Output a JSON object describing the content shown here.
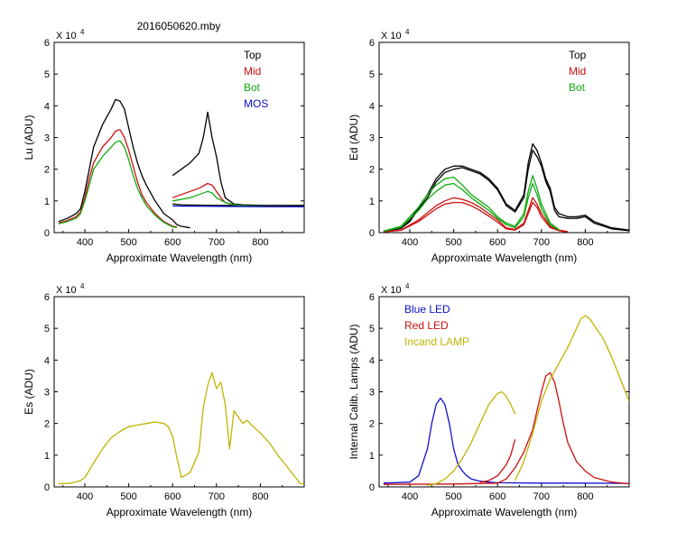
{
  "figure_title": "2016050620.mby",
  "colors": {
    "black": "#000000",
    "red": "#cc1010",
    "green": "#10aa10",
    "blue": "#1010cc",
    "yellow": "#c0b400"
  },
  "chart_data": [
    {
      "type": "line",
      "panel": "top-left",
      "exponent_label": "X 10",
      "exponent_power": "4",
      "xlabel": "Approximate Wavelength (nm)",
      "ylabel": "Lu (ADU)",
      "xlim": [
        330,
        900
      ],
      "ylim": [
        0,
        60000
      ],
      "xticks": [
        "400",
        "500",
        "600",
        "700",
        "800"
      ],
      "yticks": [
        "0",
        "1",
        "2",
        "3",
        "4",
        "5",
        "6"
      ],
      "legend": [
        {
          "label": "Top",
          "color": "#000000"
        },
        {
          "label": "Mid",
          "color": "#cc1010"
        },
        {
          "label": "Bot",
          "color": "#10aa10"
        },
        {
          "label": "MOS",
          "color": "#1010cc"
        }
      ],
      "series": [
        {
          "name": "Top",
          "color": "#000000",
          "x": [
            340,
            360,
            380,
            390,
            400,
            410,
            420,
            440,
            460,
            470,
            480,
            490,
            500,
            510,
            520,
            530,
            540,
            560,
            580,
            600,
            610,
            620,
            640
          ],
          "y": [
            3500,
            4500,
            6000,
            7500,
            13000,
            20000,
            27000,
            34000,
            39000,
            42000,
            41500,
            39000,
            33000,
            27000,
            22000,
            18000,
            15000,
            10000,
            6000,
            4000,
            2500,
            2000,
            1500
          ]
        },
        {
          "name": "Top (red)",
          "color": "#000000",
          "x": [
            600,
            620,
            640,
            660,
            670,
            680,
            690,
            700,
            710,
            720,
            740,
            760,
            800,
            900
          ],
          "y": [
            18000,
            20000,
            22000,
            25000,
            30000,
            38000,
            30000,
            24000,
            16000,
            11000,
            9000,
            8800,
            8600,
            8600
          ]
        },
        {
          "name": "Top (flat)",
          "color": "#000000",
          "x": [
            600,
            620,
            640,
            700,
            760,
            800,
            900
          ],
          "y": [
            9000,
            8800,
            8700,
            8600,
            8600,
            8500,
            8500
          ]
        },
        {
          "name": "Mid",
          "color": "#cc1010",
          "x": [
            340,
            360,
            380,
            390,
            400,
            410,
            420,
            440,
            460,
            470,
            480,
            490,
            500,
            510,
            520,
            530,
            540,
            560,
            580,
            600,
            610
          ],
          "y": [
            3000,
            3800,
            5000,
            6500,
            11000,
            17000,
            22000,
            27000,
            30000,
            32000,
            32500,
            30000,
            26000,
            21000,
            16000,
            12000,
            9500,
            6000,
            3500,
            2000,
            1800
          ]
        },
        {
          "name": "Mid (red)",
          "color": "#cc1010",
          "x": [
            600,
            620,
            640,
            660,
            680,
            690,
            700,
            710,
            720,
            740,
            760,
            800,
            900
          ],
          "y": [
            11000,
            12000,
            13000,
            14000,
            15500,
            15000,
            13000,
            11000,
            9500,
            8800,
            8500,
            8300,
            8200
          ]
        },
        {
          "name": "Bot",
          "color": "#10aa10",
          "x": [
            340,
            360,
            380,
            390,
            400,
            410,
            420,
            440,
            460,
            470,
            480,
            490,
            500,
            510,
            520,
            530,
            540,
            560,
            580,
            600,
            610
          ],
          "y": [
            2800,
            3500,
            4500,
            6000,
            10000,
            15000,
            20000,
            24000,
            27000,
            28500,
            29000,
            27000,
            23000,
            18000,
            14000,
            11000,
            8500,
            5500,
            3200,
            1800,
            1600
          ]
        },
        {
          "name": "Bot (red)",
          "color": "#10aa10",
          "x": [
            600,
            620,
            640,
            660,
            680,
            690,
            700,
            720,
            740,
            760,
            800,
            900
          ],
          "y": [
            10000,
            10500,
            11000,
            12000,
            13000,
            12500,
            11000,
            9500,
            8800,
            8500,
            8300,
            8200
          ]
        },
        {
          "name": "MOS",
          "color": "#1010cc",
          "x": [
            600,
            700,
            800,
            900
          ],
          "y": [
            8400,
            8300,
            8200,
            8200
          ]
        }
      ]
    },
    {
      "type": "line",
      "panel": "top-right",
      "exponent_label": "X 10",
      "exponent_power": "4",
      "xlabel": "Approximate Wavelength (nm)",
      "ylabel": "Ed  (ADU)",
      "xlim": [
        330,
        900
      ],
      "ylim": [
        0,
        60000
      ],
      "xticks": [
        "400",
        "500",
        "600",
        "700",
        "800"
      ],
      "yticks": [
        "0",
        "1",
        "2",
        "3",
        "4",
        "5",
        "6"
      ],
      "legend": [
        {
          "label": "Top",
          "color": "#000000"
        },
        {
          "label": "Mid",
          "color": "#cc1010"
        },
        {
          "label": "Bot",
          "color": "#10aa10"
        }
      ],
      "series": [
        {
          "name": "Top",
          "color": "#000000",
          "x": [
            340,
            380,
            400,
            420,
            440,
            460,
            480,
            500,
            520,
            540,
            560,
            580,
            600,
            620,
            640,
            660,
            670,
            680,
            690,
            700,
            710,
            720,
            730,
            740,
            760,
            780,
            800,
            820,
            860,
            900
          ],
          "y": [
            500,
            1500,
            4000,
            8000,
            12000,
            17000,
            20000,
            21000,
            21000,
            20000,
            19000,
            17000,
            14000,
            9000,
            7000,
            12000,
            22000,
            28000,
            26000,
            22000,
            17000,
            14000,
            8000,
            6000,
            5000,
            5000,
            5500,
            3500,
            1500,
            800
          ]
        },
        {
          "name": "Top 2",
          "color": "#000000",
          "x": [
            340,
            380,
            400,
            420,
            440,
            460,
            480,
            500,
            520,
            540,
            560,
            580,
            600,
            620,
            640,
            660,
            670,
            680,
            690,
            700,
            710,
            720,
            730,
            740,
            760,
            780,
            800,
            820,
            860,
            900
          ],
          "y": [
            400,
            1300,
            3500,
            7500,
            11000,
            16000,
            19000,
            20000,
            20500,
            19500,
            18500,
            16500,
            13500,
            8500,
            6500,
            11000,
            20000,
            26000,
            24000,
            21000,
            16000,
            13000,
            7000,
            5000,
            4500,
            4500,
            5000,
            3000,
            1200,
            600
          ]
        },
        {
          "name": "Mid",
          "color": "#cc1010",
          "x": [
            340,
            380,
            420,
            460,
            480,
            500,
            520,
            540,
            560,
            580,
            600,
            620,
            640,
            660,
            670,
            680,
            690,
            700,
            720,
            740,
            760
          ],
          "y": [
            300,
            800,
            4000,
            8500,
            10000,
            11000,
            10500,
            9500,
            8000,
            6000,
            4000,
            1500,
            1000,
            3000,
            7000,
            11000,
            9000,
            6000,
            2000,
            800,
            300
          ]
        },
        {
          "name": "Mid 2",
          "color": "#cc1010",
          "x": [
            340,
            380,
            420,
            460,
            480,
            500,
            520,
            540,
            560,
            580,
            600,
            620,
            640,
            660,
            670,
            680,
            690,
            700,
            720,
            740,
            760
          ],
          "y": [
            250,
            700,
            3500,
            7500,
            9000,
            9500,
            9500,
            8500,
            7000,
            5200,
            3300,
            1200,
            800,
            2500,
            6000,
            9500,
            8000,
            5000,
            1600,
            600,
            200
          ]
        },
        {
          "name": "Bot",
          "color": "#10aa10",
          "x": [
            340,
            380,
            420,
            440,
            460,
            480,
            500,
            520,
            540,
            560,
            580,
            600,
            620,
            640,
            660,
            670,
            680,
            690,
            700,
            720,
            740
          ],
          "y": [
            500,
            2000,
            8000,
            12000,
            15000,
            17000,
            17500,
            15000,
            12000,
            10000,
            8000,
            5000,
            3000,
            2000,
            6000,
            13000,
            18000,
            14000,
            9000,
            3000,
            1000
          ]
        },
        {
          "name": "Bot 2",
          "color": "#10aa10",
          "x": [
            340,
            380,
            420,
            440,
            460,
            480,
            500,
            520,
            540,
            560,
            580,
            600,
            620,
            640,
            660,
            670,
            680,
            690,
            700,
            720,
            740
          ],
          "y": [
            400,
            1700,
            7000,
            10500,
            13000,
            15000,
            15500,
            13500,
            11000,
            9000,
            7000,
            4500,
            2500,
            1500,
            5000,
            11000,
            15500,
            12000,
            7500,
            2500,
            800
          ]
        }
      ]
    },
    {
      "type": "line",
      "panel": "bottom-left",
      "exponent_label": "X 10",
      "exponent_power": "4",
      "xlabel": "Approximate Wavelength (nm)",
      "ylabel": "Es  (ADU)",
      "xlim": [
        330,
        900
      ],
      "ylim": [
        0,
        60000
      ],
      "xticks": [
        "400",
        "500",
        "600",
        "700",
        "800"
      ],
      "yticks": [
        "0",
        "1",
        "2",
        "3",
        "4",
        "5",
        "6"
      ],
      "legend": [],
      "series": [
        {
          "name": "Es",
          "color": "#c0b400",
          "x": [
            340,
            370,
            390,
            400,
            420,
            440,
            460,
            480,
            500,
            520,
            540,
            560,
            580,
            590,
            600,
            610,
            620,
            640,
            660,
            670,
            680,
            690,
            700,
            710,
            720,
            730,
            740,
            750,
            760,
            770,
            780,
            800,
            820,
            840,
            860,
            880,
            890,
            900
          ],
          "y": [
            1000,
            1200,
            2000,
            3000,
            7500,
            12000,
            15500,
            17500,
            19000,
            19500,
            20000,
            20500,
            20000,
            19000,
            16000,
            9000,
            3000,
            4500,
            11000,
            25000,
            32000,
            36000,
            31000,
            33000,
            26000,
            12000,
            24000,
            22000,
            20000,
            21000,
            19500,
            17000,
            14000,
            10000,
            6500,
            3000,
            1200,
            800
          ]
        }
      ]
    },
    {
      "type": "line",
      "panel": "bottom-right",
      "exponent_label": "X 10",
      "exponent_power": "4",
      "xlabel": "Approximate Wavelength (nm)",
      "ylabel": "Internal Calib. Lamps (ADU)",
      "xlim": [
        330,
        900
      ],
      "ylim": [
        0,
        60000
      ],
      "xticks": [
        "400",
        "500",
        "600",
        "700",
        "800"
      ],
      "yticks": [
        "0",
        "1",
        "2",
        "3",
        "4",
        "5",
        "6"
      ],
      "legend": [
        {
          "label": "Blue LED",
          "color": "#1010cc"
        },
        {
          "label": "Red LED",
          "color": "#cc1010"
        },
        {
          "label": "Incand LAMP",
          "color": "#c0b400"
        }
      ],
      "series": [
        {
          "name": "Blue LED",
          "color": "#1010cc",
          "x": [
            340,
            400,
            420,
            440,
            450,
            460,
            470,
            480,
            490,
            500,
            510,
            520,
            530,
            540,
            560,
            580,
            600,
            700,
            800,
            900
          ],
          "y": [
            1200,
            1500,
            3500,
            12000,
            20000,
            26000,
            28000,
            26000,
            20000,
            12000,
            7000,
            5000,
            3500,
            2500,
            1800,
            1500,
            1300,
            1200,
            1200,
            1100
          ]
        },
        {
          "name": "Red LED",
          "color": "#cc1010",
          "x": [
            340,
            500,
            600,
            620,
            640,
            660,
            680,
            690,
            700,
            710,
            720,
            730,
            740,
            750,
            760,
            780,
            800,
            820,
            860,
            900
          ],
          "y": [
            800,
            900,
            1200,
            2500,
            6000,
            11000,
            18000,
            24000,
            30000,
            35000,
            36000,
            33000,
            27000,
            20000,
            14000,
            8000,
            5000,
            3000,
            1500,
            1000
          ]
        },
        {
          "name": "Red LED (short)",
          "color": "#cc1010",
          "x": [
            560,
            580,
            600,
            620,
            630,
            640
          ],
          "y": [
            1500,
            2000,
            3500,
            7000,
            10000,
            15000
          ]
        },
        {
          "name": "Incand LAMP",
          "color": "#c0b400",
          "x": [
            440,
            460,
            480,
            500,
            520,
            540,
            560,
            580,
            600,
            610,
            620,
            630,
            640
          ],
          "y": [
            500,
            1000,
            2500,
            5000,
            9000,
            14000,
            20000,
            26000,
            29500,
            30000,
            28500,
            26000,
            23000
          ]
        },
        {
          "name": "Incand LAMP 2",
          "color": "#c0b400",
          "x": [
            640,
            660,
            680,
            700,
            720,
            740,
            760,
            780,
            790,
            800,
            810,
            820,
            840,
            860,
            880,
            900
          ],
          "y": [
            2000,
            8000,
            17000,
            27000,
            34000,
            39000,
            44000,
            50000,
            53000,
            54000,
            53000,
            51000,
            47000,
            41000,
            34000,
            27000
          ]
        }
      ]
    }
  ]
}
